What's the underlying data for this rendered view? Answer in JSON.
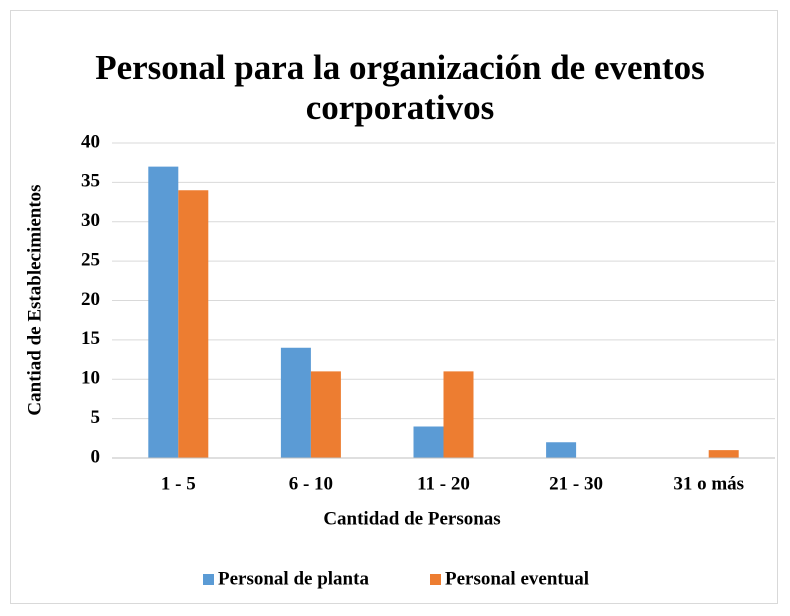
{
  "chart_data": {
    "type": "bar",
    "title": "Personal para la organización de eventos corporativos",
    "x_label": "Cantidad de Personas",
    "y_label": "Cantiad de Establecimientos",
    "categories": [
      "1 - 5",
      "6 - 10",
      "11 - 20",
      "21 - 30",
      "31 o más"
    ],
    "series": [
      {
        "name": "Personal de planta",
        "color": "#5b9bd5",
        "values": [
          37,
          14,
          4,
          2,
          0
        ]
      },
      {
        "name": "Personal eventual",
        "color": "#ed7d31",
        "values": [
          34,
          11,
          11,
          0,
          1
        ]
      }
    ],
    "ylim": [
      0,
      40
    ],
    "yticks": [
      0,
      5,
      10,
      15,
      20,
      25,
      30,
      35,
      40
    ],
    "grid": true,
    "legend": "bottom"
  }
}
